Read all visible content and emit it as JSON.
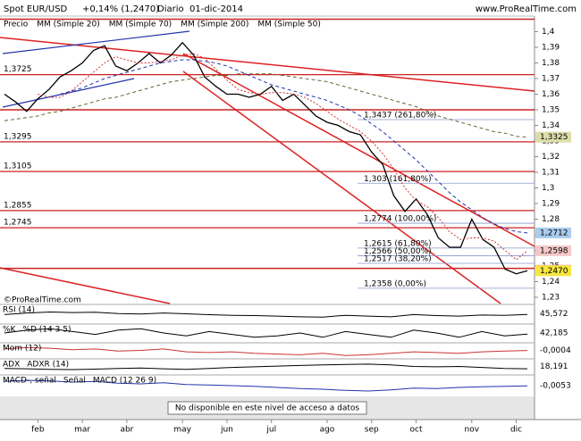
{
  "header": {
    "instrument": "Spot EUR/USD",
    "change": "+0,14% (1,2470)",
    "period": "Diario",
    "date": "01-dic-2014",
    "site": "www.ProRealTime.com",
    "watermark": "©ProRealTime.com",
    "notice": "No disponible en este nivel de acceso a datos"
  },
  "chart_data": {
    "type": "line",
    "categories": [
      null,
      null,
      null,
      "feb",
      null,
      null,
      null,
      "mar",
      null,
      null,
      null,
      "abr",
      null,
      null,
      null,
      null,
      "may",
      null,
      null,
      null,
      "jun",
      null,
      null,
      null,
      "jul",
      null,
      null,
      null,
      null,
      "ago",
      null,
      null,
      null,
      "sep",
      null,
      null,
      null,
      "oct",
      null,
      null,
      null,
      null,
      "nov",
      null,
      null,
      null,
      "dic",
      null
    ],
    "ylim": [
      1.226,
      1.41
    ],
    "yticks": [
      {
        "value": 1.4,
        "label": "1,4"
      },
      {
        "value": 1.39,
        "label": "1,39"
      },
      {
        "value": 1.38,
        "label": "1,38"
      },
      {
        "value": 1.37,
        "label": "1,37"
      },
      {
        "value": 1.36,
        "label": "1,36"
      },
      {
        "value": 1.35,
        "label": "1,35"
      },
      {
        "value": 1.34,
        "label": "1,34"
      },
      {
        "value": 1.33,
        "label": "1,33"
      },
      {
        "value": 1.32,
        "label": "1,32"
      },
      {
        "value": 1.31,
        "label": "1,31"
      },
      {
        "value": 1.3,
        "label": "1,3"
      },
      {
        "value": 1.29,
        "label": "1,29"
      },
      {
        "value": 1.28,
        "label": "1,28"
      },
      {
        "value": 1.27,
        "label": "1,27"
      },
      {
        "value": 1.26,
        "label": "1,26"
      },
      {
        "value": 1.25,
        "label": "1,25"
      },
      {
        "value": 1.24,
        "label": "1,24"
      },
      {
        "value": 1.23,
        "label": "1,23"
      }
    ],
    "series": [
      {
        "name": "Precio",
        "color": "#000000",
        "dash": "",
        "values": [
          1.36,
          1.355,
          1.349,
          1.357,
          1.363,
          1.371,
          1.375,
          1.38,
          1.388,
          1.391,
          1.378,
          1.375,
          1.38,
          1.386,
          1.38,
          1.385,
          1.393,
          1.385,
          1.371,
          1.365,
          1.36,
          1.36,
          1.358,
          1.36,
          1.365,
          1.356,
          1.36,
          1.353,
          1.346,
          1.342,
          1.34,
          1.336,
          1.334,
          1.323,
          1.315,
          1.295,
          1.285,
          1.293,
          1.283,
          1.268,
          1.262,
          1.262,
          1.28,
          1.267,
          1.262,
          1.248,
          1.245,
          1.247
        ]
      },
      {
        "name": "MM (Simple 20)",
        "color": "#cc3333",
        "dash": "2,2",
        "values": [
          null,
          null,
          null,
          1.36,
          1.358,
          1.358,
          1.362,
          1.368,
          1.374,
          1.38,
          1.384,
          1.382,
          1.38,
          1.38,
          1.381,
          1.382,
          1.385,
          1.386,
          1.383,
          1.376,
          1.369,
          1.363,
          1.361,
          1.36,
          1.361,
          1.361,
          1.36,
          1.358,
          1.354,
          1.349,
          1.344,
          1.34,
          1.336,
          1.33,
          1.322,
          1.312,
          1.3,
          1.292,
          1.288,
          1.281,
          1.272,
          1.267,
          1.268,
          1.268,
          1.266,
          1.26,
          1.254,
          1.2598
        ]
      },
      {
        "name": "MM (Simple 70)",
        "color": "#2233aa",
        "dash": "4,3",
        "values": [
          null,
          null,
          null,
          null,
          null,
          1.36,
          1.362,
          1.364,
          1.367,
          1.37,
          1.372,
          1.374,
          1.376,
          1.378,
          1.38,
          1.381,
          1.382,
          1.382,
          1.381,
          1.38,
          1.378,
          1.375,
          1.372,
          1.369,
          1.366,
          1.364,
          1.362,
          1.36,
          1.358,
          1.356,
          1.353,
          1.35,
          1.346,
          1.341,
          1.336,
          1.33,
          1.324,
          1.318,
          1.311,
          1.304,
          1.297,
          1.291,
          1.286,
          1.281,
          1.277,
          1.274,
          1.272,
          1.2712
        ]
      },
      {
        "name": "MM (Simple 200)",
        "color": "#666633",
        "dash": "4,3",
        "values": [
          1.343,
          1.344,
          1.345,
          1.346,
          1.348,
          1.349,
          1.351,
          1.353,
          1.355,
          1.357,
          1.358,
          1.36,
          1.362,
          1.364,
          1.366,
          1.368,
          1.369,
          1.37,
          1.371,
          1.372,
          1.372,
          1.373,
          1.373,
          1.373,
          1.373,
          1.372,
          1.371,
          1.37,
          1.369,
          1.368,
          1.366,
          1.364,
          1.362,
          1.36,
          1.358,
          1.356,
          1.354,
          1.352,
          1.349,
          1.346,
          1.344,
          1.342,
          1.34,
          1.338,
          1.336,
          1.335,
          1.333,
          1.3325
        ]
      }
    ],
    "inactive_indicator": "MM (Simple 50)",
    "levels": [
      {
        "value": 1.3725,
        "label": "1,3725"
      },
      {
        "value": 1.3295,
        "label": "1,3295"
      },
      {
        "value": 1.3105,
        "label": "1,3105"
      },
      {
        "value": 1.2855,
        "label": "1,2855"
      },
      {
        "value": 1.2745,
        "label": "1,2745"
      }
    ],
    "extra_lines": [
      1.408,
      1.35,
      1.2485
    ],
    "fib_levels": [
      {
        "value": 1.3437,
        "label": "1,3437 (261,80%)"
      },
      {
        "value": 1.303,
        "label": "1,303 (161,80%)"
      },
      {
        "value": 1.2774,
        "label": "1,2774 (100,00%)"
      },
      {
        "value": 1.2615,
        "label": "1,2615 (61,80%)"
      },
      {
        "value": 1.2566,
        "label": "1,2566 (50,00%)"
      },
      {
        "value": 1.2517,
        "label": "1,2517 (38,20%)"
      },
      {
        "value": 1.2358,
        "label": "1,2358 (0,00%)"
      }
    ],
    "price_labels": [
      {
        "value": 1.3325,
        "label": "1,3325",
        "color": "#ddddaa"
      },
      {
        "value": 1.2712,
        "label": "1,2712",
        "color": "#aaccee"
      },
      {
        "value": 1.2598,
        "label": "1,2598",
        "color": "#f4c8c8"
      },
      {
        "value": 1.2473,
        "label": "1,2473",
        "color": "#f0a0a0"
      },
      {
        "value": 1.247,
        "label": "1,2470",
        "color": "#f5e640"
      }
    ],
    "panels": [
      {
        "titles": [
          "RSI (14)"
        ],
        "color": "#000000",
        "ylim": [
          0,
          100
        ],
        "values": [
          45,
          55,
          62,
          58,
          60,
          52,
          48,
          55,
          50,
          44,
          40,
          38,
          35,
          30,
          28,
          40,
          35,
          30,
          45,
          38,
          35,
          42,
          40,
          45.572
        ],
        "last_label": "45,572"
      },
      {
        "titles": [
          "%K",
          "%D (14 3 5)"
        ],
        "color": "#000000",
        "ylim": [
          0,
          100
        ],
        "values": [
          50,
          70,
          80,
          60,
          40,
          70,
          80,
          50,
          30,
          60,
          40,
          20,
          30,
          50,
          20,
          60,
          40,
          20,
          70,
          50,
          20,
          60,
          30,
          42.185
        ],
        "last_label": "42,185"
      },
      {
        "titles": [
          "Mom (12)"
        ],
        "color": "#cc3333",
        "ylim": [
          -0.04,
          0.04
        ],
        "values": [
          0.01,
          0.02,
          0.015,
          0.005,
          0.01,
          -0.005,
          0.0,
          0.01,
          -0.01,
          -0.015,
          -0.01,
          -0.02,
          -0.025,
          -0.03,
          -0.02,
          -0.035,
          -0.03,
          -0.02,
          -0.01,
          -0.015,
          -0.02,
          -0.01,
          -0.005,
          -0.0004
        ],
        "last_label": "-0,0004"
      },
      {
        "titles": [
          "ADX",
          "ADXR (14)"
        ],
        "color": "#000000",
        "ylim": [
          0,
          60
        ],
        "values": [
          20,
          18,
          15,
          14,
          16,
          20,
          22,
          18,
          15,
          20,
          25,
          28,
          32,
          35,
          38,
          40,
          42,
          38,
          30,
          28,
          30,
          25,
          20,
          18.191
        ],
        "last_label": "18,191"
      },
      {
        "titles": [
          "MACD-, señal",
          "Señal",
          "MACD (12 26 9)"
        ],
        "color": "#2233aa",
        "ylim": [
          -0.02,
          0.01
        ],
        "values": [
          0.002,
          0.004,
          0.003,
          0.001,
          0.002,
          -0.001,
          -0.002,
          0.0,
          -0.003,
          -0.004,
          -0.005,
          -0.006,
          -0.008,
          -0.01,
          -0.011,
          -0.013,
          -0.014,
          -0.012,
          -0.009,
          -0.01,
          -0.008,
          -0.007,
          -0.006,
          -0.0053
        ],
        "last_label": "-0,0053"
      }
    ]
  }
}
